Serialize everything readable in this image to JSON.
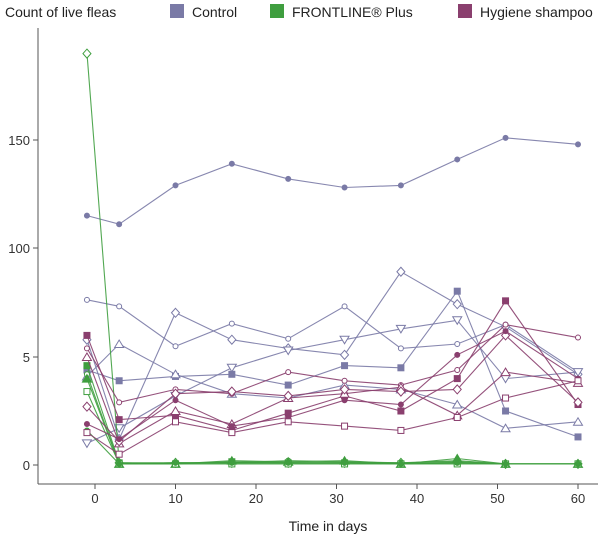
{
  "chart_data": {
    "type": "line",
    "title": "",
    "ylabel": "Count of live fleas",
    "xlabel": "Time in days",
    "x_ticks": [
      0,
      10,
      20,
      30,
      40,
      50,
      60
    ],
    "y_ticks": [
      0,
      5,
      100,
      150
    ],
    "y_tick_labels": [
      "0",
      "5",
      "100",
      "150"
    ],
    "xlim": [
      -4,
      62
    ],
    "legend": {
      "placement": "top",
      "entries": [
        {
          "label": "Control",
          "color": "#7a7aa6"
        },
        {
          "label": "FRONTLINE® Plus",
          "color": "#3f9e3f"
        },
        {
          "label": "Hygiene shampoo",
          "color": "#8a3f6e"
        }
      ]
    },
    "x": [
      -1,
      3,
      10,
      17,
      24,
      31,
      38,
      45,
      51,
      60
    ],
    "series": [
      {
        "group": "Control",
        "color": "#7a7aa6",
        "marker": "filled-circle",
        "values": [
          115,
          111,
          129,
          139,
          132,
          128,
          129,
          141,
          151,
          148
        ]
      },
      {
        "group": "Control",
        "color": "#7a7aa6",
        "marker": "open-circle",
        "values": [
          76,
          73,
          5.5,
          65,
          58,
          73,
          5.4,
          5.6,
          6.5,
          4.3
        ]
      },
      {
        "group": "Control",
        "color": "#7a7aa6",
        "marker": "open-diamond",
        "values": [
          5.8,
          1.2,
          70,
          5.8,
          5.4,
          5.1,
          89,
          74,
          6.4,
          4.2
        ]
      },
      {
        "group": "Control",
        "color": "#7a7aa6",
        "marker": "filled-square",
        "values": [
          4.4,
          3.9,
          4.1,
          4.2,
          3.7,
          4.6,
          4.5,
          80,
          2.5,
          1.3
        ]
      },
      {
        "group": "Control",
        "color": "#7a7aa6",
        "marker": "open-triangle",
        "values": [
          4.1,
          5.6,
          4.2,
          3.3,
          3.1,
          3.7,
          3.5,
          2.8,
          1.7,
          2.0
        ]
      },
      {
        "group": "Control",
        "color": "#7a7aa6",
        "marker": "open-triangle-down",
        "values": [
          1.0,
          1.7,
          3.2,
          4.5,
          5.3,
          5.8,
          6.3,
          6.7,
          4.0,
          4.3
        ]
      },
      {
        "group": "FRONTLINE® Plus",
        "color": "#3f9e3f",
        "marker": "open-diamond",
        "values": [
          190,
          0.1,
          0.1,
          0.1,
          0.1,
          0.1,
          0.1,
          0.15,
          0.05,
          0.05
        ]
      },
      {
        "group": "FRONTLINE® Plus",
        "color": "#3f9e3f",
        "marker": "filled-square",
        "values": [
          4.6,
          0.1,
          0.05,
          0.15,
          0.1,
          0.1,
          0.05,
          0.1,
          0.05,
          0.05
        ]
      },
      {
        "group": "FRONTLINE® Plus",
        "color": "#3f9e3f",
        "marker": "open-circle",
        "values": [
          4.2,
          0.05,
          0.1,
          0.1,
          0.2,
          0.15,
          0.1,
          0.2,
          0.05,
          0.05
        ]
      },
      {
        "group": "FRONTLINE® Plus",
        "color": "#3f9e3f",
        "marker": "filled-triangle",
        "values": [
          4.0,
          0.05,
          0.05,
          0.2,
          0.15,
          0.2,
          0.05,
          0.3,
          0.05,
          0.05
        ]
      },
      {
        "group": "FRONTLINE® Plus",
        "color": "#3f9e3f",
        "marker": "open-square",
        "values": [
          3.4,
          0.05,
          0.05,
          0.05,
          0.05,
          0.05,
          0.05,
          0.05,
          0.05,
          0.05
        ]
      },
      {
        "group": "FRONTLINE® Plus",
        "color": "#3f9e3f",
        "marker": "filled-circle",
        "values": [
          1.6,
          0.05,
          0.1,
          0.1,
          0.1,
          0.1,
          0.05,
          0.1,
          0.05,
          0.05
        ]
      },
      {
        "group": "Hygiene shampoo",
        "color": "#8a3f6e",
        "marker": "filled-square",
        "values": [
          6.0,
          2.1,
          2.3,
          1.6,
          2.4,
          3.2,
          2.5,
          4.0,
          7.6,
          2.8
        ]
      },
      {
        "group": "Hygiene shampoo",
        "color": "#8a3f6e",
        "marker": "open-circle",
        "values": [
          5.4,
          2.9,
          3.5,
          3.3,
          4.3,
          3.9,
          3.7,
          4.4,
          6.5,
          5.9
        ]
      },
      {
        "group": "Hygiene shampoo",
        "color": "#8a3f6e",
        "marker": "open-triangle",
        "values": [
          5.0,
          1.0,
          2.5,
          1.9,
          3.1,
          3.3,
          3.6,
          2.3,
          4.3,
          3.8
        ]
      },
      {
        "group": "Hygiene shampoo",
        "color": "#8a3f6e",
        "marker": "open-diamond",
        "values": [
          2.7,
          1.1,
          3.3,
          3.4,
          3.2,
          3.5,
          3.4,
          3.5,
          6.0,
          2.9
        ]
      },
      {
        "group": "Hygiene shampoo",
        "color": "#8a3f6e",
        "marker": "filled-circle",
        "values": [
          1.9,
          1.2,
          3.0,
          1.8,
          2.2,
          3.0,
          2.8,
          5.1,
          6.2,
          4.0
        ]
      },
      {
        "group": "Hygiene shampoo",
        "color": "#8a3f6e",
        "marker": "open-square",
        "values": [
          1.5,
          0.5,
          2.0,
          1.5,
          2.0,
          1.8,
          1.6,
          2.2,
          3.1,
          3.9
        ]
      }
    ]
  }
}
